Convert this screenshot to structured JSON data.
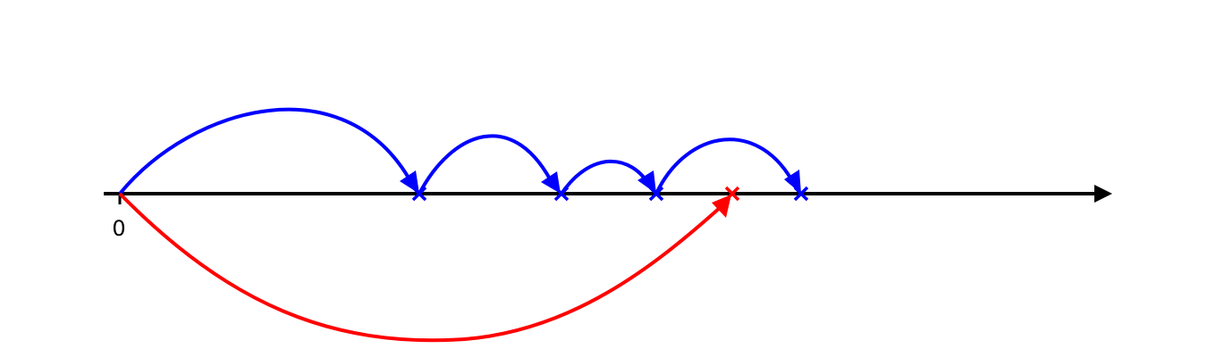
{
  "axis": {
    "origin_label": "0",
    "color": "#000000"
  },
  "colors": {
    "jumps": "#0000ff",
    "direct": "#ff0000"
  },
  "icons": {
    "point_marker": "x-mark-icon",
    "arrowhead": "arrowhead-icon"
  }
}
